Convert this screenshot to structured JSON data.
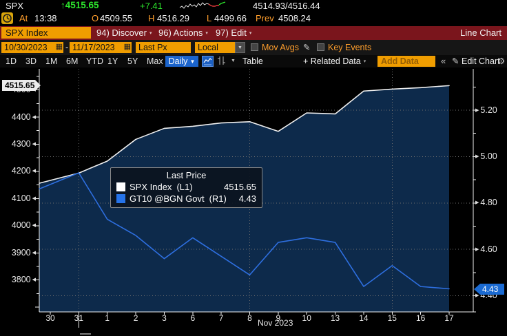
{
  "colors": {
    "up_green": "#2ce52c",
    "label_orange": "#ff9e2c",
    "amber_field": "#f09d00",
    "menu_red": "#7a151c",
    "accent_blue": "#1b64cc",
    "spx_line": "#f0f0f0",
    "gt10_line": "#2e6fe0",
    "area_fill": "#0d2a4b"
  },
  "icons": {
    "up_arrow": "↑",
    "calendar": "▦",
    "dropdown": "▼",
    "small_caret": "▾",
    "pencil": "✎",
    "gear": "⚙",
    "chevrons": "«",
    "plus": "+"
  },
  "header": {
    "ticker": "SPX",
    "price": "4515.65",
    "change": "+7.41",
    "bid_ask": "4514.93/4516.44",
    "at_label": "At",
    "time": "13:38",
    "open_label": "O",
    "open": "4509.55",
    "high_label": "H",
    "high": "4516.29",
    "low_label": "L",
    "low": "4499.66",
    "prev_label": "Prev",
    "prev": "4508.24"
  },
  "menubar": {
    "security_tab": "SPX Index",
    "discover": "94) Discover",
    "actions": "96) Actions",
    "edit": "97) Edit",
    "chart_type": "Line Chart"
  },
  "controls": {
    "date_from": "10/30/2023",
    "date_separator": "-",
    "date_to": "11/17/2023",
    "price_field": "Last Px",
    "currency": "Local CCY",
    "mov_avgs_label": "Mov Avgs",
    "key_events_label": "Key Events"
  },
  "toolbar": {
    "ranges": [
      "1D",
      "3D",
      "1M",
      "6M",
      "YTD",
      "1Y",
      "5Y",
      "Max"
    ],
    "period_label": "Daily",
    "table_label": "Table",
    "related_label": "+ Related Data",
    "add_data_placeholder": "Add Data",
    "edit_chart_label": "Edit Chart"
  },
  "legend": {
    "title": "Last Price",
    "rows": [
      {
        "color": "#ffffff",
        "label": "SPX Index",
        "axis_tag": "(L1)",
        "value": "4515.65"
      },
      {
        "color": "#2673e8",
        "label": "GT10 @BGN Govt",
        "axis_tag": "(R1)",
        "value": "4.43"
      }
    ]
  },
  "chart_data": {
    "type": "line",
    "title": "SPX Index vs GT10 @BGN Govt — Last Price, 10/30/2023 - 11/17/2023, Daily",
    "x_labels": [
      "30",
      "31",
      "1",
      "2",
      "3",
      "6",
      "7",
      "8",
      "9",
      "10",
      "13",
      "14",
      "15",
      "16",
      "17"
    ],
    "x_axis_label": "Nov 2023",
    "month_boundary_label": "31",
    "vertical_gridline_labels": [
      "31",
      "8",
      "15"
    ],
    "series": [
      {
        "name": "SPX Index (L1)",
        "axis": "left",
        "color": "#f0f0f0",
        "values": [
          4166.82,
          4193.8,
          4237.86,
          4317.78,
          4358.34,
          4365.98,
          4378.38,
          4382.78,
          4347.35,
          4415.24,
          4411.55,
          4495.7,
          4502.88,
          4508.24,
          4515.65
        ]
      },
      {
        "name": "GT10 @BGN Govt (R1)",
        "axis": "right",
        "color": "#2e6fe0",
        "values": [
          4.88,
          4.93,
          4.73,
          4.66,
          4.56,
          4.65,
          4.57,
          4.49,
          4.63,
          4.65,
          4.63,
          4.44,
          4.53,
          4.44,
          4.43
        ]
      }
    ],
    "left_axis": {
      "ticks": [
        4500,
        4400,
        4300,
        4200,
        4100,
        4000,
        3900,
        3800
      ],
      "range": [
        3755,
        4560
      ],
      "current_tag": "4515.65"
    },
    "right_axis": {
      "ticks": [
        "5.20",
        "5.00",
        "4.80",
        "4.60",
        "4.40"
      ],
      "range": [
        4.33,
        5.38
      ],
      "current_tag": "4.43"
    },
    "grid": true,
    "legend_position": "inner-left"
  }
}
